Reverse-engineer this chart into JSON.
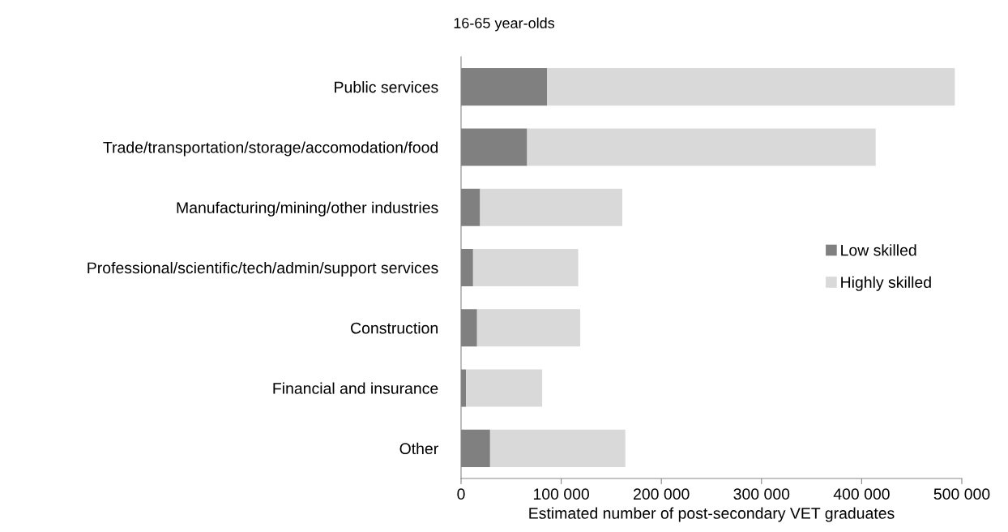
{
  "chart_data": {
    "type": "bar",
    "orientation": "horizontal",
    "stacked": true,
    "title": "16-65 year-olds",
    "xlabel": "Estimated number of post-secondary VET graduates",
    "categories": [
      "Public services",
      "Trade/transportation/storage/accomodation/food",
      "Manufacturing/mining/other industries",
      "Professional/scientific/tech/admin/support services",
      "Construction",
      "Financial and insurance",
      "Other"
    ],
    "series": [
      {
        "name": "Low skilled",
        "color": "#808080",
        "values": [
          86000,
          66000,
          19000,
          12000,
          16000,
          5000,
          29000
        ]
      },
      {
        "name": "Highly skilled",
        "color": "#d9d9d9",
        "values": [
          407000,
          348000,
          142000,
          105000,
          103000,
          76000,
          135000
        ]
      }
    ],
    "xlim": [
      0,
      500000
    ],
    "xticks": [
      0,
      {
        "value": 100000,
        "label": "100 000"
      },
      {
        "value": 200000,
        "label": "200 000"
      },
      {
        "value": 300000,
        "label": "300 000"
      },
      {
        "value": 400000,
        "label": "400 000"
      },
      {
        "value": 500000,
        "label": "500 000"
      }
    ],
    "grid": false,
    "legend": "right"
  }
}
